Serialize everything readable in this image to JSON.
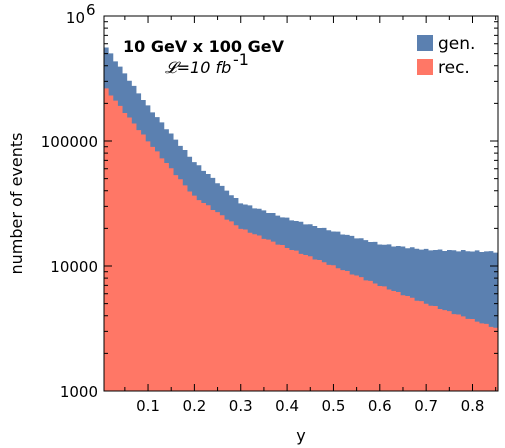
{
  "chart_data": {
    "type": "bar",
    "title": "10 GeV x 100 GeV",
    "luminosity": {
      "prefix": "𝓛=10 fb",
      "superscript": "-1"
    },
    "xlabel": "y",
    "ylabel": "number of events",
    "yscale": "log",
    "xlim": [
      0.005,
      0.855
    ],
    "ylim": [
      1000,
      1000000
    ],
    "x_ticks": [
      "0.1",
      "0.2",
      "0.3",
      "0.4",
      "0.5",
      "0.6",
      "0.7",
      "0.8"
    ],
    "x_tick_values": [
      0.1,
      0.2,
      0.3,
      0.4,
      0.5,
      0.6,
      0.7,
      0.8
    ],
    "y_ticks": [
      {
        "value": 1000,
        "label": "1000"
      },
      {
        "value": 10000,
        "label": "10000"
      },
      {
        "value": 100000,
        "label": "100000"
      },
      {
        "value": 1000000,
        "label": "10",
        "sup": "6"
      }
    ],
    "legend_position": "top-right",
    "series": [
      {
        "name": "gen.",
        "color": "#5b80b0",
        "x": [
          0.01,
          0.1,
          0.2,
          0.3,
          0.4,
          0.5,
          0.6,
          0.7,
          0.85
        ],
        "y": [
          560000,
          190000,
          68000,
          32000,
          24000,
          19000,
          15000,
          13500,
          13000
        ]
      },
      {
        "name": "rec.",
        "color": "#ff7766",
        "x": [
          0.01,
          0.1,
          0.2,
          0.3,
          0.4,
          0.5,
          0.6,
          0.7,
          0.85
        ],
        "y": [
          260000,
          100000,
          36000,
          20000,
          14000,
          10000,
          7000,
          5000,
          3200
        ]
      }
    ]
  }
}
